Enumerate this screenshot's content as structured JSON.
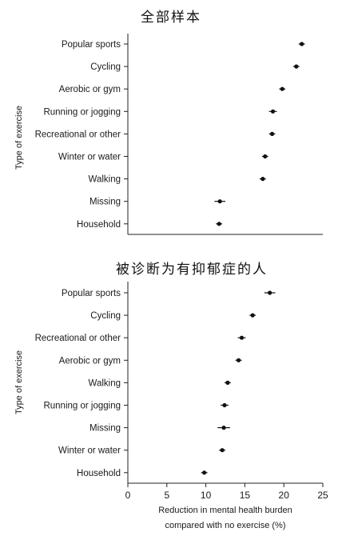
{
  "chart_data": [
    {
      "type": "dot-errorbar",
      "title": "全部样本",
      "ylabel": "Type of exercise",
      "xlabel": "",
      "xlim": [
        0,
        25
      ],
      "xticks": [],
      "grid": false,
      "categories": [
        "Popular sports",
        "Cycling",
        "Aerobic or gym",
        "Running or jogging",
        "Recreational or other",
        "Winter or water",
        "Walking",
        "Missing",
        "Household"
      ],
      "values": [
        22.3,
        21.6,
        19.8,
        18.6,
        18.5,
        17.6,
        17.3,
        11.8,
        11.7
      ],
      "ci_low": [
        21.9,
        21.2,
        19.4,
        18.1,
        18.1,
        17.2,
        16.9,
        11.1,
        11.3
      ],
      "ci_high": [
        22.7,
        22.0,
        20.2,
        19.1,
        18.9,
        18.0,
        17.7,
        12.5,
        12.1
      ]
    },
    {
      "type": "dot-errorbar",
      "title": "被诊断为有抑郁症的人",
      "ylabel": "Type of exercise",
      "xlabel": "Reduction in mental health burden compared with no exercise (%)",
      "xlabel_lines": [
        "Reduction in mental health burden",
        "compared with no exercise (%)"
      ],
      "xlim": [
        0,
        25
      ],
      "xticks": [
        "0",
        "5",
        "10",
        "15",
        "20",
        "25"
      ],
      "grid": false,
      "categories": [
        "Popular sports",
        "Cycling",
        "Recreational or other",
        "Aerobic or gym",
        "Walking",
        "Running or jogging",
        "Missing",
        "Winter or water",
        "Household"
      ],
      "values": [
        18.2,
        16.0,
        14.6,
        14.2,
        12.8,
        12.4,
        12.3,
        12.1,
        9.8
      ],
      "ci_low": [
        17.5,
        15.6,
        14.1,
        13.8,
        12.4,
        11.9,
        11.5,
        11.7,
        9.4
      ],
      "ci_high": [
        18.9,
        16.4,
        15.1,
        14.6,
        13.2,
        12.9,
        13.1,
        12.5,
        10.2
      ]
    }
  ]
}
